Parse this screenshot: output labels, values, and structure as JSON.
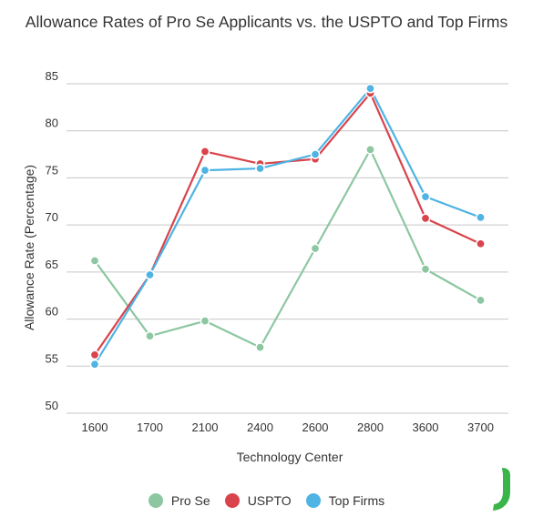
{
  "chart_data": {
    "type": "line",
    "title": "Allowance Rates of Pro Se Applicants vs. the USPTO and Top Firms",
    "xlabel": "Technology Center",
    "ylabel": "Allowance Rate (Percentage)",
    "categories": [
      "1600",
      "1700",
      "2100",
      "2400",
      "2600",
      "2800",
      "3600",
      "3700"
    ],
    "ylim": [
      50,
      85
    ],
    "yticks": [
      50,
      55,
      60,
      65,
      70,
      75,
      80,
      85
    ],
    "grid": true,
    "legend_position": "bottom",
    "series": [
      {
        "name": "Pro Se",
        "color": "#8cc7a1",
        "values": [
          66.2,
          58.2,
          59.8,
          57.0,
          67.5,
          78.0,
          65.3,
          62.0
        ]
      },
      {
        "name": "USPTO",
        "color": "#d9434b",
        "values": [
          56.2,
          64.7,
          77.8,
          76.5,
          77.0,
          84.0,
          70.7,
          68.0
        ]
      },
      {
        "name": "Top Firms",
        "color": "#4fb3e3",
        "values": [
          55.2,
          64.7,
          75.8,
          76.0,
          77.5,
          84.5,
          73.0,
          70.8
        ]
      }
    ]
  },
  "logo": {
    "name": "j-logo-icon",
    "color": "#3bb54a"
  }
}
